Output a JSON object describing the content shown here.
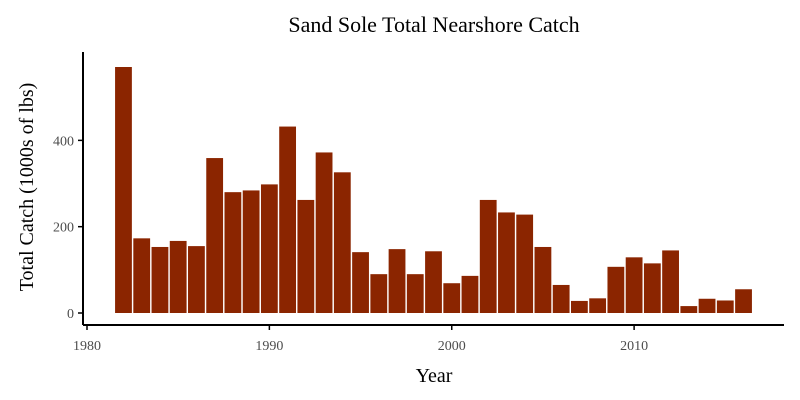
{
  "chart_data": {
    "type": "bar",
    "title": "Sand Sole Total Nearshore Catch",
    "xlabel": "Year",
    "ylabel": "Total Catch (1000s of lbs)",
    "x": [
      1982,
      1983,
      1984,
      1985,
      1986,
      1987,
      1988,
      1989,
      1990,
      1991,
      1992,
      1993,
      1994,
      1995,
      1996,
      1997,
      1998,
      1999,
      2000,
      2001,
      2002,
      2003,
      2004,
      2005,
      2006,
      2007,
      2008,
      2009,
      2010,
      2011,
      2012,
      2013,
      2014,
      2015,
      2016
    ],
    "values": [
      570,
      173,
      153,
      167,
      155,
      359,
      280,
      284,
      298,
      432,
      262,
      372,
      326,
      141,
      90,
      148,
      90,
      143,
      69,
      86,
      262,
      233,
      228,
      153,
      65,
      28,
      34,
      107,
      129,
      115,
      145,
      16,
      33,
      29,
      55
    ],
    "xlim": [
      1980,
      2018
    ],
    "ylim": [
      0,
      570
    ],
    "x_ticks": [
      1980,
      1990,
      2000,
      2010
    ],
    "y_ticks": [
      0,
      200,
      400
    ],
    "x_tick_labels": [
      "1980",
      "1990",
      "2000",
      "2010"
    ],
    "y_tick_labels": [
      "0",
      "200",
      "400"
    ],
    "bar_color": "#8b2500",
    "grid": false,
    "legend": "none"
  }
}
